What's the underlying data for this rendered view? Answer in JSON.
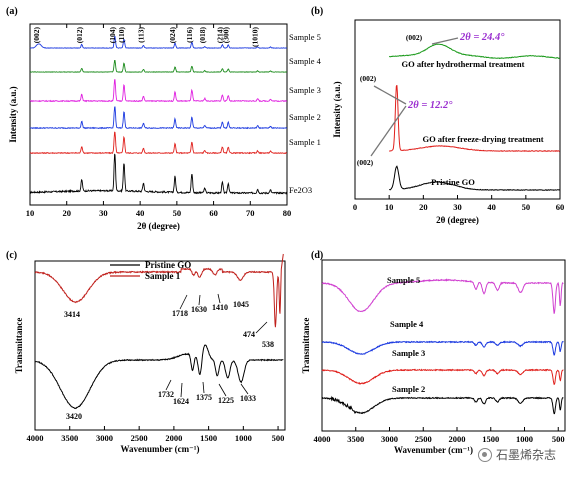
{
  "chart_data": [
    {
      "panel": "(a)",
      "type": "line",
      "xlabel": "2θ (degree)",
      "ylabel": "Intensity (a.u.)",
      "xlim": [
        10,
        80
      ],
      "xticks": [
        10,
        20,
        30,
        40,
        50,
        60,
        70,
        80
      ],
      "peak_labels": [
        {
          "text": "(002)",
          "x": 12.4
        },
        {
          "text": "(012)",
          "x": 24.1
        },
        {
          "text": "(104)",
          "x": 33.1
        },
        {
          "text": "(110)",
          "x": 35.6
        },
        {
          "text": "(113)",
          "x": 40.9
        },
        {
          "text": "(024)",
          "x": 49.5
        },
        {
          "text": "(116)",
          "x": 54.1
        },
        {
          "text": "(018)",
          "x": 57.6
        },
        {
          "text": "(214)",
          "x": 62.4
        },
        {
          "text": "(300)",
          "x": 64.0
        },
        {
          "text": "(1010)",
          "x": 72.0
        }
      ],
      "series": [
        {
          "name": "Fe2O3",
          "color": "#000000",
          "offset": 0,
          "scale": 1.0
        },
        {
          "name": "Sample 1",
          "color": "#e0201c",
          "offset": 1,
          "scale": 0.42
        },
        {
          "name": "Sample 2",
          "color": "#1c3ae0",
          "offset": 2,
          "scale": 0.42
        },
        {
          "name": "Sample 3",
          "color": "#e020e0",
          "offset": 3,
          "scale": 0.42
        },
        {
          "name": "Sample 4",
          "color": "#1a8a1a",
          "offset": 4,
          "scale": 0.25
        },
        {
          "name": "Sample 5",
          "color": "#1c3ae0",
          "offset": 5,
          "scale": 0.25
        }
      ],
      "peaks": [
        [
          24.1,
          0.3
        ],
        [
          33.1,
          1.0
        ],
        [
          35.6,
          0.75
        ],
        [
          40.9,
          0.22
        ],
        [
          49.5,
          0.42
        ],
        [
          54.1,
          0.5
        ],
        [
          57.6,
          0.12
        ],
        [
          62.4,
          0.28
        ],
        [
          64.0,
          0.26
        ],
        [
          72.0,
          0.1
        ],
        [
          75.5,
          0.08
        ]
      ]
    },
    {
      "panel": "(b)",
      "type": "line",
      "xlabel": "2θ (degree)",
      "ylabel": "Intensity (a.u.)",
      "xlim": [
        0,
        60
      ],
      "xticks": [
        0,
        10,
        20,
        30,
        40,
        50,
        60
      ],
      "series": [
        {
          "name": "Pristine GO",
          "color": "#000000",
          "peak_x": 12.2,
          "peak_label": "(002)"
        },
        {
          "name": "GO after freeze-drying treatment",
          "color": "#e0201c",
          "peak_x": 12.2,
          "peak_label": "(002)"
        },
        {
          "name": "GO after hydrothermal treatment",
          "color": "#1a9a1a",
          "peak_x": 24.4,
          "peak_label": "(002)"
        }
      ],
      "annotations": [
        {
          "text": "2θ = 24.4°",
          "color": "#9b30d0"
        },
        {
          "text": "2θ = 12.2°",
          "color": "#9b30d0"
        }
      ]
    },
    {
      "panel": "(c)",
      "type": "line",
      "xlabel": "Wavenumber (cm⁻¹)",
      "ylabel": "Transmittance",
      "xlim": [
        4000,
        400
      ],
      "xticks": [
        4000,
        3500,
        3000,
        2500,
        2000,
        1500,
        1000,
        500
      ],
      "series": [
        {
          "name": "Pristine GO",
          "color": "#000000",
          "peak_labels": [
            "3420",
            "1732",
            "1624",
            "1375",
            "1225",
            "1033"
          ]
        },
        {
          "name": "Sample 1",
          "color": "#c0201c",
          "peak_labels": [
            "3414",
            "1718",
            "1630",
            "1410",
            "1045",
            "474",
            "538"
          ]
        }
      ]
    },
    {
      "panel": "(d)",
      "type": "line",
      "xlabel": "Wavenumber (cm⁻¹)",
      "ylabel": "Transmittance",
      "xlim": [
        4000,
        400
      ],
      "xticks": [
        4000,
        3500,
        3000,
        2500,
        2000,
        1500,
        1000,
        500
      ],
      "series": [
        {
          "name": "Sample 2",
          "color": "#000000"
        },
        {
          "name": "Sample 3",
          "color": "#e0201c"
        },
        {
          "name": "Sample 4",
          "color": "#1c3ae0"
        },
        {
          "name": "Sample 5",
          "color": "#d040d0"
        }
      ]
    }
  ],
  "watermark": {
    "text": "石墨烯杂志"
  }
}
